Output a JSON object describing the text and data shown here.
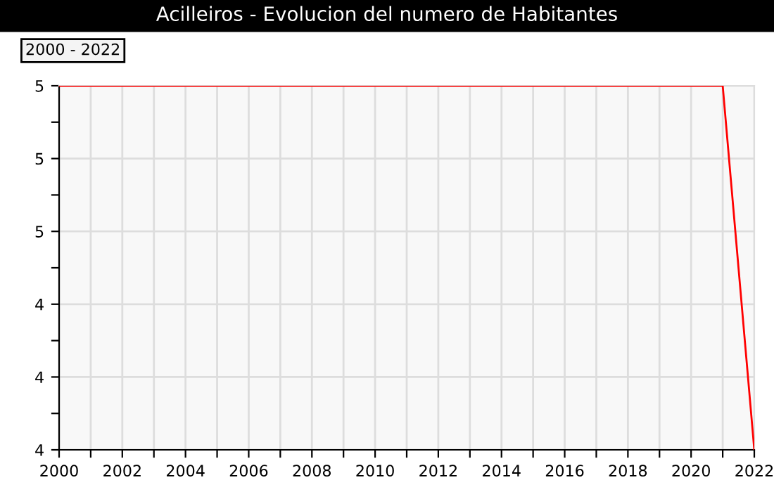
{
  "chart_data": {
    "type": "line",
    "title": "Acilleiros - Evolucion del numero de Habitantes",
    "annotations": [
      "2000 - 2022"
    ],
    "x": [
      2000,
      2001,
      2002,
      2003,
      2004,
      2005,
      2006,
      2007,
      2008,
      2009,
      2010,
      2011,
      2012,
      2013,
      2014,
      2015,
      2016,
      2017,
      2018,
      2019,
      2020,
      2021,
      2022
    ],
    "series": [
      {
        "color": "#ff0000",
        "values": [
          5,
          5,
          5,
          5,
          5,
          5,
          5,
          5,
          5,
          5,
          5,
          5,
          5,
          5,
          5,
          5,
          5,
          5,
          5,
          5,
          5,
          5,
          4
        ]
      }
    ],
    "xlim": [
      2000,
      2022
    ],
    "xticks": [
      2000,
      {
        "value": 2001,
        "label": null
      },
      2002,
      {
        "value": 2003,
        "label": null
      },
      2004,
      {
        "value": 2005,
        "label": null
      },
      2006,
      {
        "value": 2007,
        "label": null
      },
      2008,
      {
        "value": 2009,
        "label": null
      },
      2010,
      {
        "value": 2011,
        "label": null
      },
      2012,
      {
        "value": 2013,
        "label": null
      },
      2014,
      {
        "value": 2015,
        "label": null
      },
      2016,
      {
        "value": 2017,
        "label": null
      },
      2018,
      {
        "value": 2019,
        "label": null
      },
      2020,
      {
        "value": 2021,
        "label": null
      },
      2022
    ],
    "ylim": [
      4,
      5
    ],
    "yticks": [
      {
        "value": 4,
        "label": "4"
      },
      {
        "value": 4.1,
        "label": null
      },
      {
        "value": 4.2,
        "label": "4"
      },
      {
        "value": 4.3,
        "label": null
      },
      {
        "value": 4.4,
        "label": "4"
      },
      {
        "value": 4.5,
        "label": null
      },
      {
        "value": 4.6,
        "label": "5"
      },
      {
        "value": 4.7,
        "label": null
      },
      {
        "value": 4.8,
        "label": "5"
      },
      {
        "value": 4.9,
        "label": null
      },
      {
        "value": 5,
        "label": "5"
      }
    ],
    "grid": true,
    "legend": false,
    "marker": "none",
    "line_style": "solid"
  }
}
